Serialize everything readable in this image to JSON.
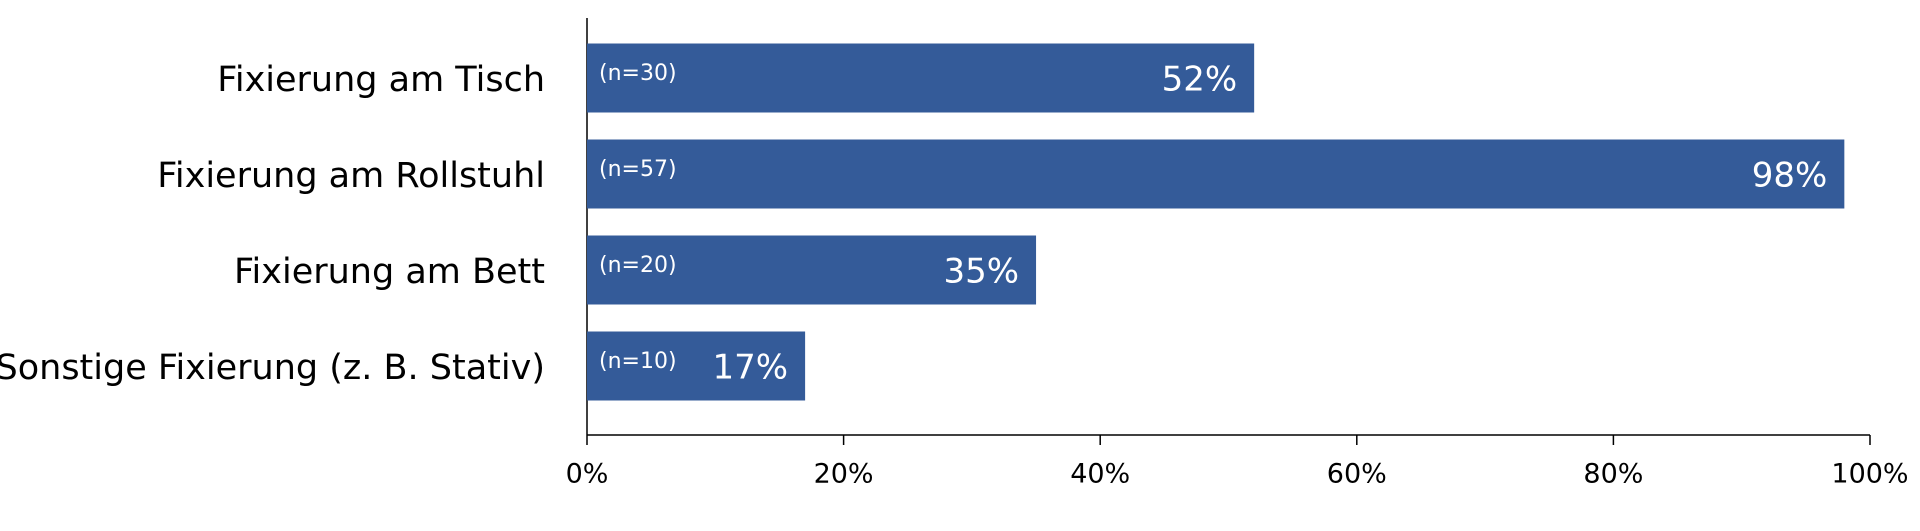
{
  "chart_data": {
    "type": "bar",
    "orientation": "horizontal",
    "categories": [
      "Fixierung am Tisch",
      "Fixierung am Rollstuhl",
      "Fixierung am Bett",
      "Sonstige Fixierung (z. B. Stativ)"
    ],
    "values": [
      52,
      98,
      35,
      17
    ],
    "value_labels": [
      "52%",
      "98%",
      "35%",
      "17%"
    ],
    "n_labels": [
      "(n=30)",
      "(n=57)",
      "(n=20)",
      "(n=10)"
    ],
    "color": "#345b99",
    "xlim": [
      0,
      100
    ],
    "xticks": [
      {
        "value": 0,
        "label": "0%"
      },
      {
        "value": 20,
        "label": "20%"
      },
      {
        "value": 40,
        "label": "40%"
      },
      {
        "value": 60,
        "label": "60%"
      },
      {
        "value": 80,
        "label": "80%"
      },
      {
        "value": 100,
        "label": "100%"
      }
    ],
    "grid": false
  }
}
